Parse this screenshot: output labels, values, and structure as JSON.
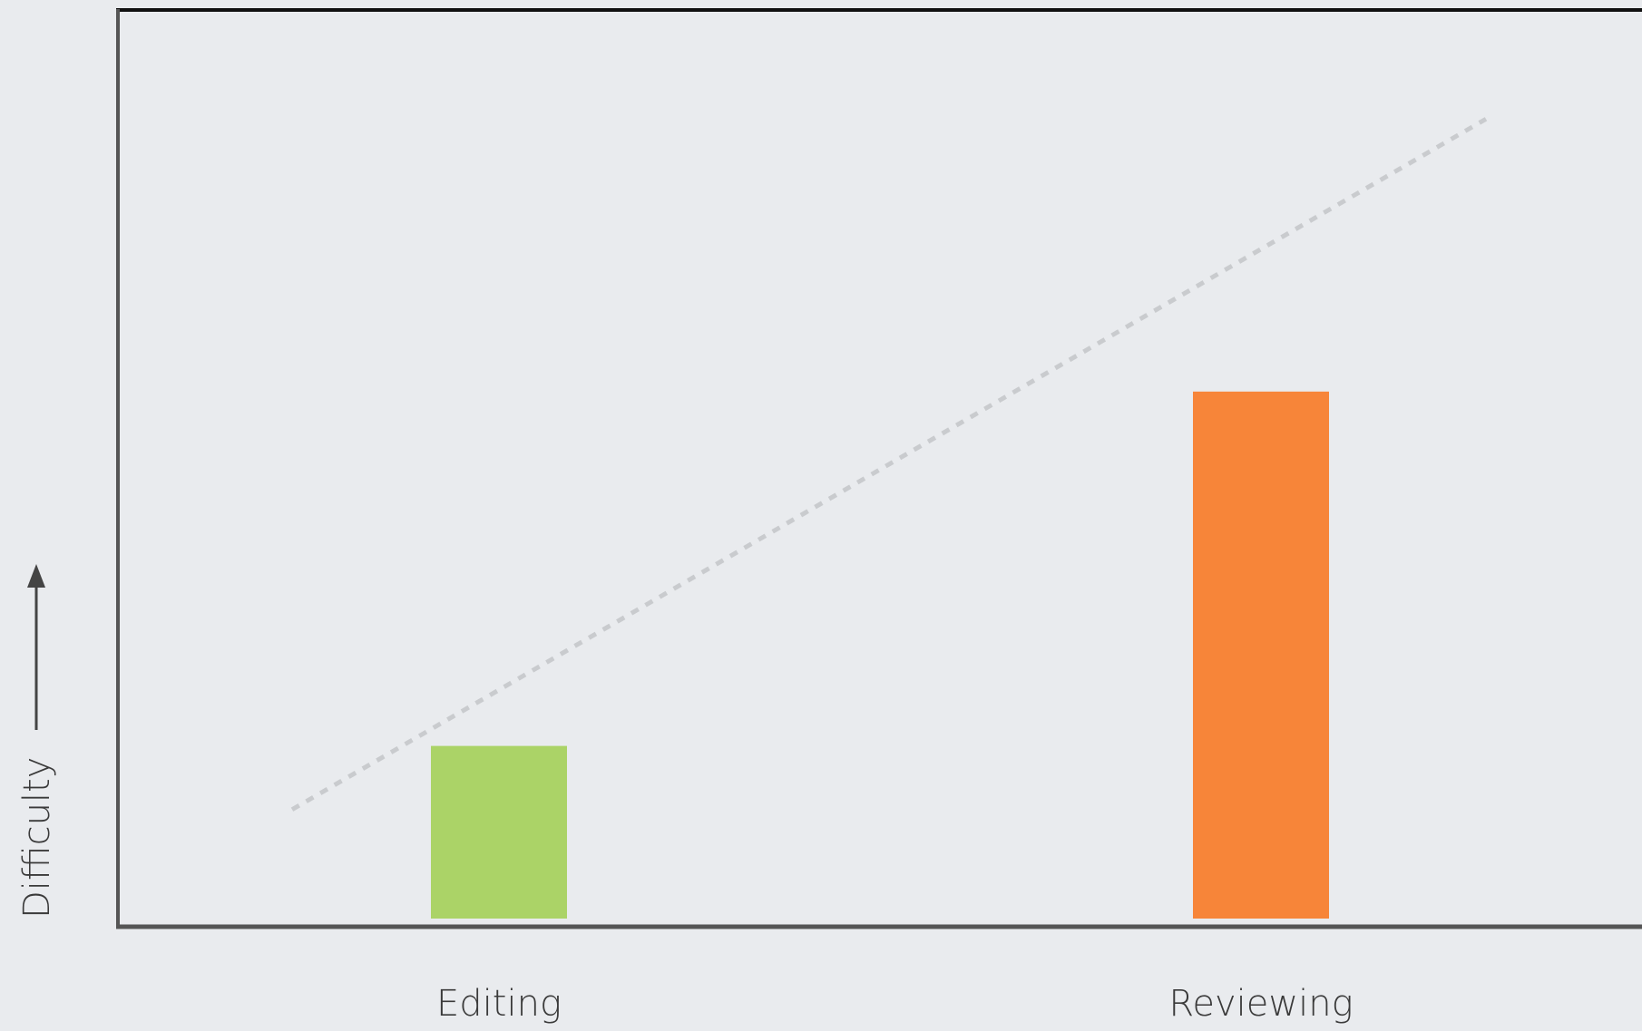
{
  "chart_data": {
    "type": "bar",
    "categories": [
      "Editing",
      "Reviewing"
    ],
    "values": [
      19,
      58
    ],
    "colors": [
      "#abd367",
      "#f78539"
    ],
    "ylabel": "Difficulty",
    "ylim": [
      0,
      100
    ],
    "trend_line": {
      "style": "dashed",
      "color": "#c9cbce",
      "start": 12,
      "end": 88
    },
    "axis_color": "#555555",
    "frame_top_color": "#111111",
    "grid": false,
    "legend": "none"
  }
}
